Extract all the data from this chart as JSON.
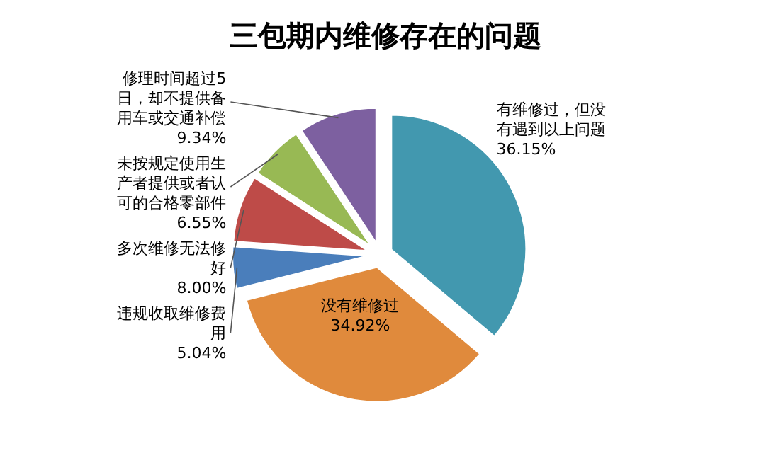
{
  "chart_data": {
    "type": "pie",
    "title": "三包期内维修存在的问题",
    "categories": [
      "有维修过，但没有遇到以上问题",
      "没有维修过",
      "违规收取维修费用",
      "多次维修无法修好",
      "未按规定使用生产者提供或者认可的合格零部件",
      "修理时间超过5日，却不提供备用车或交通补偿"
    ],
    "values": [
      36.15,
      34.92,
      5.04,
      8.0,
      6.55,
      9.34
    ],
    "value_labels": [
      "36.15%",
      "34.92%",
      "5.04%",
      "8.00%",
      "6.55%",
      "9.34%"
    ],
    "colors": [
      "#4298af",
      "#e08a3c",
      "#4a7ebb",
      "#be4b48",
      "#98b954",
      "#7d60a0"
    ]
  }
}
